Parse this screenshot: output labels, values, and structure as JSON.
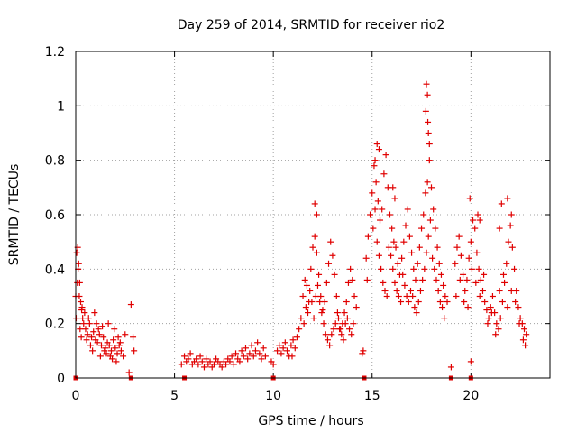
{
  "chart_data": {
    "type": "scatter",
    "title": "Day 259 of 2014, SRMTID for receiver rio2",
    "xlabel": "GPS time / hours",
    "ylabel": "SRMTID / TECUs",
    "xlim": [
      0,
      24
    ],
    "ylim": [
      0,
      1.2
    ],
    "grid": true,
    "marker": "plus",
    "color": "#e00000",
    "x_ticks": [
      {
        "value": 0,
        "label": "0"
      },
      {
        "value": 5,
        "label": "5"
      },
      {
        "value": 10,
        "label": "10"
      },
      {
        "value": 15,
        "label": "15"
      },
      {
        "value": 20,
        "label": "20"
      }
    ],
    "y_ticks": [
      {
        "value": 0,
        "label": "0"
      },
      {
        "value": 0.2,
        "label": "0.2"
      },
      {
        "value": 0.4,
        "label": "0.4"
      },
      {
        "value": 0.6,
        "label": "0.6"
      },
      {
        "value": 0.8,
        "label": "0.8"
      },
      {
        "value": 1.0,
        "label": "1"
      },
      {
        "value": 1.2,
        "label": "1.2"
      }
    ],
    "series": [
      {
        "name": "rio2",
        "x": [
          0.0,
          0.05,
          0.1,
          0.15,
          0.2,
          0.25,
          0.3,
          0.35,
          0.4,
          0.5,
          0.6,
          0.7,
          0.8,
          0.9,
          1.0,
          1.1,
          1.2,
          1.3,
          1.4,
          1.5,
          1.6,
          1.7,
          1.8,
          1.9,
          2.0,
          2.1,
          2.2,
          2.3,
          2.4,
          2.5,
          2.8,
          2.9,
          2.95,
          5.5,
          5.6,
          5.7,
          5.8,
          5.9,
          6.0,
          6.1,
          6.2,
          6.3,
          6.4,
          6.5,
          6.6,
          6.7,
          6.8,
          6.9,
          7.0,
          7.1,
          7.2,
          7.3,
          7.4,
          7.5,
          7.6,
          7.7,
          7.8,
          7.9,
          8.0,
          8.1,
          8.2,
          8.3,
          8.4,
          8.5,
          8.6,
          8.7,
          8.8,
          8.9,
          9.0,
          9.1,
          9.2,
          9.3,
          9.4,
          9.5,
          9.6,
          10.2,
          10.3,
          10.4,
          10.5,
          10.6,
          10.7,
          10.8,
          10.9,
          11.0,
          11.1,
          11.2,
          11.3,
          11.4,
          11.5,
          11.6,
          11.7,
          11.8,
          11.9,
          12.0,
          12.1,
          12.2,
          12.3,
          12.4,
          12.5,
          12.6,
          12.7,
          12.8,
          12.9,
          13.0,
          13.1,
          13.2,
          13.3,
          13.4,
          13.5,
          13.6,
          13.7,
          13.8,
          13.9,
          14.0,
          14.1,
          14.2,
          14.7,
          14.8,
          14.9,
          15.0,
          15.1,
          15.2,
          15.3,
          15.4,
          15.5,
          15.6,
          15.7,
          15.8,
          15.9,
          16.0,
          16.1,
          16.2,
          16.3,
          16.4,
          16.5,
          16.6,
          16.7,
          16.8,
          16.9,
          17.0,
          17.1,
          17.2,
          17.3,
          17.4,
          17.5,
          17.6,
          17.7,
          17.8,
          17.9,
          18.0,
          18.1,
          18.2,
          18.3,
          18.4,
          18.5,
          18.6,
          18.7,
          18.8,
          19.2,
          19.3,
          19.4,
          19.5,
          19.6,
          19.7,
          19.8,
          19.9,
          20.0,
          20.1,
          20.2,
          20.3,
          20.4,
          20.5,
          20.6,
          20.7,
          20.8,
          20.9,
          21.0,
          21.1,
          21.2,
          21.3,
          21.4,
          21.5,
          21.6,
          21.7,
          21.8,
          21.9,
          22.0,
          22.1,
          22.2,
          22.3,
          22.4,
          22.5,
          22.6,
          22.7,
          22.8,
          0.02,
          0.08,
          0.12,
          0.18,
          0.22,
          0.28,
          0.32,
          0.45,
          0.55,
          0.65,
          0.75,
          0.85,
          0.95,
          1.05,
          1.15,
          1.25,
          1.35,
          1.45,
          1.55,
          1.65,
          1.75,
          1.85,
          1.95,
          2.05,
          2.15,
          2.25,
          14.75,
          15.05,
          15.15,
          15.25,
          15.35,
          15.45,
          15.55,
          15.65,
          15.75,
          15.85,
          15.95,
          16.05,
          16.15,
          16.25,
          16.35,
          16.45,
          16.55,
          16.65,
          16.75,
          16.85,
          16.95,
          17.05,
          17.15,
          17.25,
          17.35,
          17.45,
          17.55,
          17.65,
          17.75,
          17.85,
          17.95,
          18.05,
          18.15,
          18.25,
          18.35,
          18.45,
          18.55,
          18.65,
          11.55,
          11.65,
          11.75,
          11.85,
          11.95,
          12.05,
          12.15,
          12.25,
          12.35,
          12.45,
          12.55,
          12.65,
          12.75,
          12.85,
          12.95,
          13.05,
          13.15,
          13.25,
          13.35,
          13.45,
          13.55,
          13.65,
          13.75,
          13.85,
          13.95,
          14.05,
          19.25,
          19.45,
          19.65,
          19.85,
          20.05,
          20.25,
          20.45,
          20.65,
          20.85,
          21.05,
          21.25,
          21.45,
          21.65,
          21.85,
          22.05,
          22.25,
          22.45,
          22.65,
          22.75,
          17.75,
          17.8,
          17.85,
          17.9,
          17.72,
          17.82,
          15.25,
          15.35,
          15.15,
          16.05,
          16.15,
          12.1,
          12.2,
          19.95,
          20.35,
          20.45,
          21.45,
          21.55,
          21.85,
          22.05,
          2.7,
          9.9,
          10.0,
          14.5,
          14.55,
          19.0,
          20.0,
          5.35,
          10.95
        ],
        "y": [
          0.3,
          0.46,
          0.48,
          0.42,
          0.35,
          0.28,
          0.25,
          0.22,
          0.2,
          0.18,
          0.16,
          0.2,
          0.15,
          0.17,
          0.14,
          0.13,
          0.16,
          0.12,
          0.15,
          0.11,
          0.13,
          0.12,
          0.1,
          0.14,
          0.11,
          0.09,
          0.12,
          0.1,
          0.08,
          0.16,
          0.27,
          0.15,
          0.1,
          0.08,
          0.06,
          0.07,
          0.09,
          0.05,
          0.06,
          0.07,
          0.05,
          0.08,
          0.06,
          0.04,
          0.07,
          0.05,
          0.06,
          0.04,
          0.05,
          0.07,
          0.06,
          0.05,
          0.04,
          0.06,
          0.05,
          0.07,
          0.06,
          0.08,
          0.05,
          0.09,
          0.07,
          0.06,
          0.1,
          0.08,
          0.11,
          0.07,
          0.09,
          0.12,
          0.08,
          0.1,
          0.13,
          0.09,
          0.07,
          0.11,
          0.08,
          0.1,
          0.12,
          0.09,
          0.11,
          0.13,
          0.1,
          0.08,
          0.12,
          0.14,
          0.11,
          0.15,
          0.18,
          0.22,
          0.3,
          0.36,
          0.34,
          0.28,
          0.4,
          0.48,
          0.52,
          0.46,
          0.38,
          0.3,
          0.25,
          0.28,
          0.35,
          0.42,
          0.5,
          0.45,
          0.38,
          0.3,
          0.22,
          0.18,
          0.2,
          0.24,
          0.28,
          0.35,
          0.4,
          0.36,
          0.3,
          0.26,
          0.44,
          0.52,
          0.6,
          0.68,
          0.78,
          0.72,
          0.65,
          0.58,
          0.62,
          0.75,
          0.82,
          0.7,
          0.6,
          0.55,
          0.5,
          0.48,
          0.42,
          0.38,
          0.44,
          0.5,
          0.56,
          0.62,
          0.52,
          0.46,
          0.4,
          0.36,
          0.42,
          0.48,
          0.55,
          0.6,
          0.68,
          0.72,
          0.8,
          0.7,
          0.62,
          0.55,
          0.48,
          0.42,
          0.38,
          0.34,
          0.3,
          0.28,
          0.42,
          0.48,
          0.52,
          0.45,
          0.38,
          0.32,
          0.36,
          0.44,
          0.5,
          0.58,
          0.55,
          0.46,
          0.4,
          0.36,
          0.32,
          0.28,
          0.25,
          0.22,
          0.26,
          0.3,
          0.24,
          0.2,
          0.18,
          0.22,
          0.28,
          0.35,
          0.42,
          0.5,
          0.56,
          0.48,
          0.4,
          0.32,
          0.26,
          0.22,
          0.2,
          0.18,
          0.16,
          0.22,
          0.35,
          0.4,
          0.3,
          0.18,
          0.15,
          0.26,
          0.24,
          0.14,
          0.22,
          0.12,
          0.1,
          0.24,
          0.2,
          0.18,
          0.08,
          0.19,
          0.1,
          0.09,
          0.2,
          0.08,
          0.07,
          0.18,
          0.06,
          0.15,
          0.13,
          0.36,
          0.55,
          0.62,
          0.5,
          0.45,
          0.4,
          0.35,
          0.32,
          0.3,
          0.48,
          0.45,
          0.4,
          0.35,
          0.32,
          0.3,
          0.28,
          0.38,
          0.34,
          0.3,
          0.28,
          0.32,
          0.3,
          0.26,
          0.24,
          0.28,
          0.32,
          0.36,
          0.4,
          0.46,
          0.52,
          0.58,
          0.44,
          0.4,
          0.36,
          0.32,
          0.28,
          0.26,
          0.22,
          0.2,
          0.26,
          0.24,
          0.32,
          0.28,
          0.22,
          0.3,
          0.34,
          0.28,
          0.24,
          0.2,
          0.16,
          0.14,
          0.12,
          0.16,
          0.18,
          0.2,
          0.24,
          0.18,
          0.16,
          0.14,
          0.2,
          0.22,
          0.18,
          0.16,
          0.2,
          0.3,
          0.36,
          0.28,
          0.26,
          0.4,
          0.35,
          0.3,
          0.38,
          0.2,
          0.24,
          0.16,
          0.32,
          0.38,
          0.26,
          0.32,
          0.28,
          0.2,
          0.14,
          0.12,
          1.08,
          1.04,
          0.9,
          0.86,
          0.98,
          0.94,
          0.86,
          0.84,
          0.8,
          0.7,
          0.66,
          0.64,
          0.6,
          0.66,
          0.6,
          0.58,
          0.55,
          0.64,
          0.66,
          0.6,
          0.02,
          0.06,
          0.05,
          0.09,
          0.1,
          0.04,
          0.06,
          0.05,
          0.08
        ],
        "marker_outline_x": [
          0.0,
          2.8,
          5.5,
          10.0,
          14.6,
          19.0,
          20.0
        ],
        "baseline_markers_y": [
          0.0,
          0.0,
          0.0,
          0.0,
          0.0,
          0.0,
          0.0
        ]
      }
    ]
  }
}
